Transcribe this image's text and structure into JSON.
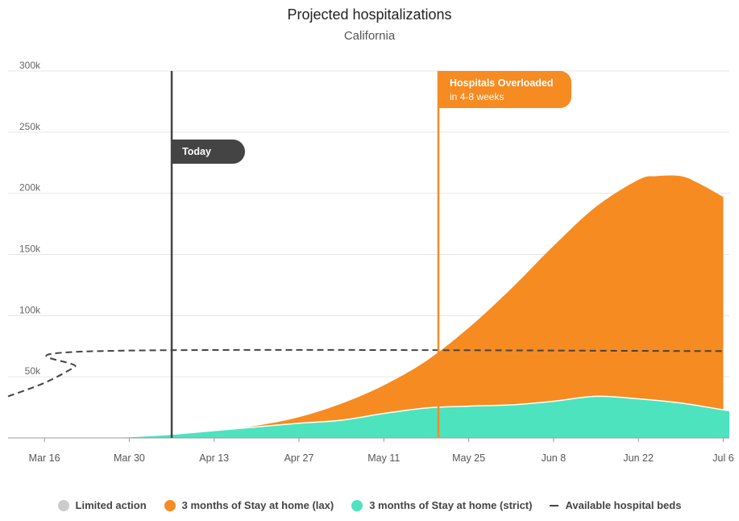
{
  "header": {
    "title": "Projected hospitalizations",
    "subtitle": "California"
  },
  "chart_data": {
    "type": "area",
    "title": "Projected hospitalizations",
    "subtitle": "California",
    "x_axis": {
      "type": "date",
      "range": [
        "2020-03-10",
        "2020-07-07"
      ],
      "ticks": [
        {
          "date": "2020-03-16",
          "label": "Mar 16"
        },
        {
          "date": "2020-03-30",
          "label": "Mar 30"
        },
        {
          "date": "2020-04-13",
          "label": "Apr 13"
        },
        {
          "date": "2020-04-27",
          "label": "Apr 27"
        },
        {
          "date": "2020-05-11",
          "label": "May 11"
        },
        {
          "date": "2020-05-25",
          "label": "May 25"
        },
        {
          "date": "2020-06-08",
          "label": "Jun 8"
        },
        {
          "date": "2020-06-22",
          "label": "Jun 22"
        },
        {
          "date": "2020-07-06",
          "label": "Jul 6"
        }
      ]
    },
    "y_axis": {
      "range": [
        0,
        300000
      ],
      "ticks": [
        {
          "value": 50000,
          "label": "50k"
        },
        {
          "value": 100000,
          "label": "100k"
        },
        {
          "value": 150000,
          "label": "150k"
        },
        {
          "value": 200000,
          "label": "200k"
        },
        {
          "value": 250000,
          "label": "250k"
        },
        {
          "value": 300000,
          "label": "300k"
        }
      ]
    },
    "grid": true,
    "legend_position": "bottom",
    "series": [
      {
        "name": "3 months of Stay at home (lax)",
        "color": "#f68b22",
        "kind": "area",
        "points": [
          {
            "date": "2020-03-16",
            "value": 0
          },
          {
            "date": "2020-03-23",
            "value": 0
          },
          {
            "date": "2020-03-30",
            "value": 1000
          },
          {
            "date": "2020-04-06",
            "value": 3000
          },
          {
            "date": "2020-04-13",
            "value": 6000
          },
          {
            "date": "2020-04-20",
            "value": 10000
          },
          {
            "date": "2020-04-27",
            "value": 17000
          },
          {
            "date": "2020-05-04",
            "value": 28000
          },
          {
            "date": "2020-05-11",
            "value": 43000
          },
          {
            "date": "2020-05-18",
            "value": 63000
          },
          {
            "date": "2020-05-25",
            "value": 90000
          },
          {
            "date": "2020-06-01",
            "value": 122000
          },
          {
            "date": "2020-06-08",
            "value": 157000
          },
          {
            "date": "2020-06-15",
            "value": 189000
          },
          {
            "date": "2020-06-22",
            "value": 211000
          },
          {
            "date": "2020-06-25",
            "value": 214000
          },
          {
            "date": "2020-06-29",
            "value": 214000
          },
          {
            "date": "2020-07-02",
            "value": 208000
          },
          {
            "date": "2020-07-06",
            "value": 197000
          }
        ]
      },
      {
        "name": "3 months of Stay at home (strict)",
        "color": "#4de3bf",
        "kind": "area",
        "points": [
          {
            "date": "2020-03-16",
            "value": 0
          },
          {
            "date": "2020-03-23",
            "value": 0
          },
          {
            "date": "2020-03-30",
            "value": 1000
          },
          {
            "date": "2020-04-06",
            "value": 3000
          },
          {
            "date": "2020-04-13",
            "value": 6000
          },
          {
            "date": "2020-04-20",
            "value": 9000
          },
          {
            "date": "2020-04-27",
            "value": 12000
          },
          {
            "date": "2020-05-04",
            "value": 14500
          },
          {
            "date": "2020-05-11",
            "value": 20000
          },
          {
            "date": "2020-05-18",
            "value": 24500
          },
          {
            "date": "2020-05-25",
            "value": 26000
          },
          {
            "date": "2020-06-01",
            "value": 27000
          },
          {
            "date": "2020-06-08",
            "value": 30000
          },
          {
            "date": "2020-06-15",
            "value": 34000
          },
          {
            "date": "2020-06-22",
            "value": 32000
          },
          {
            "date": "2020-06-29",
            "value": 28500
          },
          {
            "date": "2020-07-06",
            "value": 23000
          },
          {
            "date": "2020-07-07",
            "value": 22500
          }
        ]
      },
      {
        "name": "Available hospital beds",
        "color": "#444444",
        "kind": "dashed-line",
        "points": [
          {
            "date": "2020-03-10",
            "value": 34000
          },
          {
            "date": "2020-03-16",
            "value": 45000
          },
          {
            "date": "2020-03-21",
            "value": 58000
          },
          {
            "date": "2020-03-25",
            "value": 71000
          },
          {
            "date": "2020-07-06",
            "value": 71000
          }
        ]
      }
    ],
    "annotations": [
      {
        "name": "today",
        "date": "2020-04-06",
        "label": "Today",
        "color": "#444444"
      },
      {
        "name": "hospitals-overloaded",
        "date": "2020-05-20",
        "label": "Hospitals Overloaded",
        "sublabel": "in 4-8 weeks",
        "color": "#f68b22"
      }
    ]
  },
  "legend": {
    "items": [
      {
        "label": "Limited action",
        "color": "#cccccc",
        "shape": "dot"
      },
      {
        "label": "3 months of Stay at home (lax)",
        "color": "#f68b22",
        "shape": "dot"
      },
      {
        "label": "3 months of Stay at home (strict)",
        "color": "#4de3bf",
        "shape": "dot"
      },
      {
        "label": "Available hospital beds",
        "color": "#444444",
        "shape": "dash"
      }
    ]
  }
}
